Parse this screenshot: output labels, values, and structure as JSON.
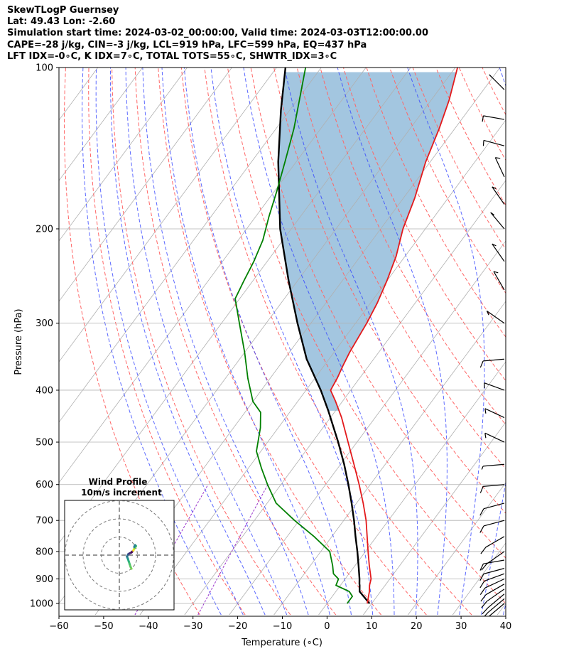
{
  "header": {
    "line1": "SkewTLogP Guernsey",
    "line2": "Lat: 49.43   Lon: -2.60",
    "line3": "Simulation start time: 2024-03-02_00:00:00, Valid time: 2024-03-03T12:00:00.00",
    "line4": "CAPE=-28 j/kg, CIN=-3 j/kg, LCL=919 hPa, LFC=599 hPa, EQ=437 hPa",
    "line5": "LFT IDX=-0∘C, K IDX=7∘C, TOTAL TOTS=55∘C, SHWTR_IDX=3∘C"
  },
  "chart_data": {
    "type": "skewt",
    "xlabel": "Temperature (∘C)",
    "ylabel": "Pressure (hPa)",
    "xlim": [
      -60,
      40
    ],
    "ylim": [
      1050,
      100
    ],
    "x_ticks": [
      -60,
      -50,
      -40,
      -30,
      -20,
      -10,
      0,
      10,
      20,
      30,
      40
    ],
    "x_tick_labels": [
      "−60",
      "−50",
      "−40",
      "−30",
      "−20",
      "−10",
      "0",
      "10",
      "20",
      "30",
      "40"
    ],
    "y_ticks": [
      100,
      200,
      300,
      400,
      500,
      600,
      700,
      800,
      900,
      1000
    ],
    "y_tick_labels": [
      "100",
      "200",
      "300",
      "400",
      "500",
      "600",
      "700",
      "800",
      "900",
      "1000"
    ],
    "grid": true,
    "colors": {
      "temperature": "#e31a1c",
      "dewpoint": "#008000",
      "parcel": "#000000",
      "cape_fill": "#a3c6e0",
      "dry_adiabats": "#ff6666",
      "moist_adiabats": "#3344ff",
      "mixing_ratio": "#9933cc",
      "isotherms": "#b0b0b0"
    },
    "series": [
      {
        "key": "temperature",
        "p": [
          1000,
          950,
          925,
          900,
          850,
          800,
          700,
          650,
          600,
          550,
          500,
          450,
          420,
          400,
          380,
          360,
          340,
          320,
          300,
          275,
          250,
          225,
          200,
          175,
          150,
          130,
          115,
          100
        ],
        "t": [
          9.0,
          7.5,
          6.5,
          5.8,
          3.2,
          0.6,
          -5.0,
          -8.5,
          -12.5,
          -17.0,
          -22.0,
          -27.5,
          -31.5,
          -34.5,
          -35.0,
          -35.8,
          -36.5,
          -37.0,
          -37.5,
          -38.5,
          -40.0,
          -42.0,
          -45.0,
          -47.5,
          -51.0,
          -53.5,
          -56.0,
          -59.5
        ]
      },
      {
        "key": "dewpoint",
        "p": [
          1000,
          970,
          950,
          925,
          900,
          880,
          850,
          800,
          750,
          700,
          650,
          600,
          560,
          520,
          470,
          440,
          420,
          380,
          340,
          300,
          270,
          250,
          230,
          210,
          190,
          170,
          150,
          130,
          115,
          100
        ],
        "t": [
          4.5,
          4.5,
          3.0,
          -1.0,
          -1.5,
          -3.5,
          -5.0,
          -8.0,
          -14.0,
          -21.0,
          -28.0,
          -33.0,
          -37.0,
          -41.0,
          -44.0,
          -46.5,
          -50.0,
          -55.0,
          -60.0,
          -66.0,
          -71.0,
          -72.0,
          -73.0,
          -74.5,
          -77.0,
          -79.5,
          -82.5,
          -86.0,
          -89.5,
          -93.5
        ]
      },
      {
        "key": "parcel",
        "p": [
          1000,
          950,
          925,
          919,
          900,
          850,
          800,
          750,
          700,
          650,
          600,
          550,
          500,
          450,
          437,
          400,
          350,
          300,
          250,
          200,
          150,
          120,
          100
        ],
        "t": [
          9.5,
          5.3,
          4.3,
          4.0,
          3.2,
          0.8,
          -1.8,
          -4.7,
          -7.7,
          -11.1,
          -14.9,
          -19.2,
          -24.2,
          -30.0,
          -31.6,
          -36.7,
          -45.0,
          -53.0,
          -62.0,
          -72.5,
          -84.0,
          -92.0,
          -98.0
        ]
      }
    ],
    "hodograph": {
      "title": "Wind Profile",
      "subtitle": "10m/s increment",
      "rings_ms": [
        10,
        20,
        30
      ],
      "u": [
        2.0,
        1.5,
        1.0,
        0.5,
        0.0,
        -0.5,
        0.2,
        1.0,
        2.0,
        3.0,
        3.5,
        4.0,
        4.5,
        4.0,
        3.5
      ],
      "v": [
        -7.5,
        -6.5,
        -5.0,
        -3.5,
        -2.0,
        -0.8,
        0.5,
        1.0,
        1.5,
        2.5,
        3.5,
        4.0,
        5.0,
        5.5,
        4.5
      ]
    },
    "wind_barbs": [
      {
        "p": 1000,
        "dir": 130,
        "spd": 10
      },
      {
        "p": 980,
        "dir": 130,
        "spd": 10
      },
      {
        "p": 960,
        "dir": 130,
        "spd": 10
      },
      {
        "p": 940,
        "dir": 125,
        "spd": 10
      },
      {
        "p": 920,
        "dir": 120,
        "spd": 10
      },
      {
        "p": 900,
        "dir": 115,
        "spd": 10
      },
      {
        "p": 880,
        "dir": 110,
        "spd": 10
      },
      {
        "p": 860,
        "dir": 105,
        "spd": 10
      },
      {
        "p": 830,
        "dir": 100,
        "spd": 10
      },
      {
        "p": 800,
        "dir": 125,
        "spd": 10
      },
      {
        "p": 750,
        "dir": 120,
        "spd": 10
      },
      {
        "p": 700,
        "dir": 105,
        "spd": 10
      },
      {
        "p": 650,
        "dir": 105,
        "spd": 10
      },
      {
        "p": 600,
        "dir": 95,
        "spd": 10
      },
      {
        "p": 550,
        "dir": 95,
        "spd": 5
      },
      {
        "p": 500,
        "dir": 65,
        "spd": 10
      },
      {
        "p": 450,
        "dir": 65,
        "spd": 10
      },
      {
        "p": 400,
        "dir": 70,
        "spd": 10
      },
      {
        "p": 350,
        "dir": 95,
        "spd": 10
      },
      {
        "p": 300,
        "dir": 55,
        "spd": 10
      },
      {
        "p": 260,
        "dir": 30,
        "spd": 10
      },
      {
        "p": 230,
        "dir": 35,
        "spd": 10
      },
      {
        "p": 200,
        "dir": 40,
        "spd": 10
      },
      {
        "p": 180,
        "dir": 35,
        "spd": 10
      },
      {
        "p": 160,
        "dir": 25,
        "spd": 10
      },
      {
        "p": 140,
        "dir": 75,
        "spd": 10
      },
      {
        "p": 125,
        "dir": 80,
        "spd": 10
      },
      {
        "p": 110,
        "dir": 45,
        "spd": 10
      }
    ]
  }
}
